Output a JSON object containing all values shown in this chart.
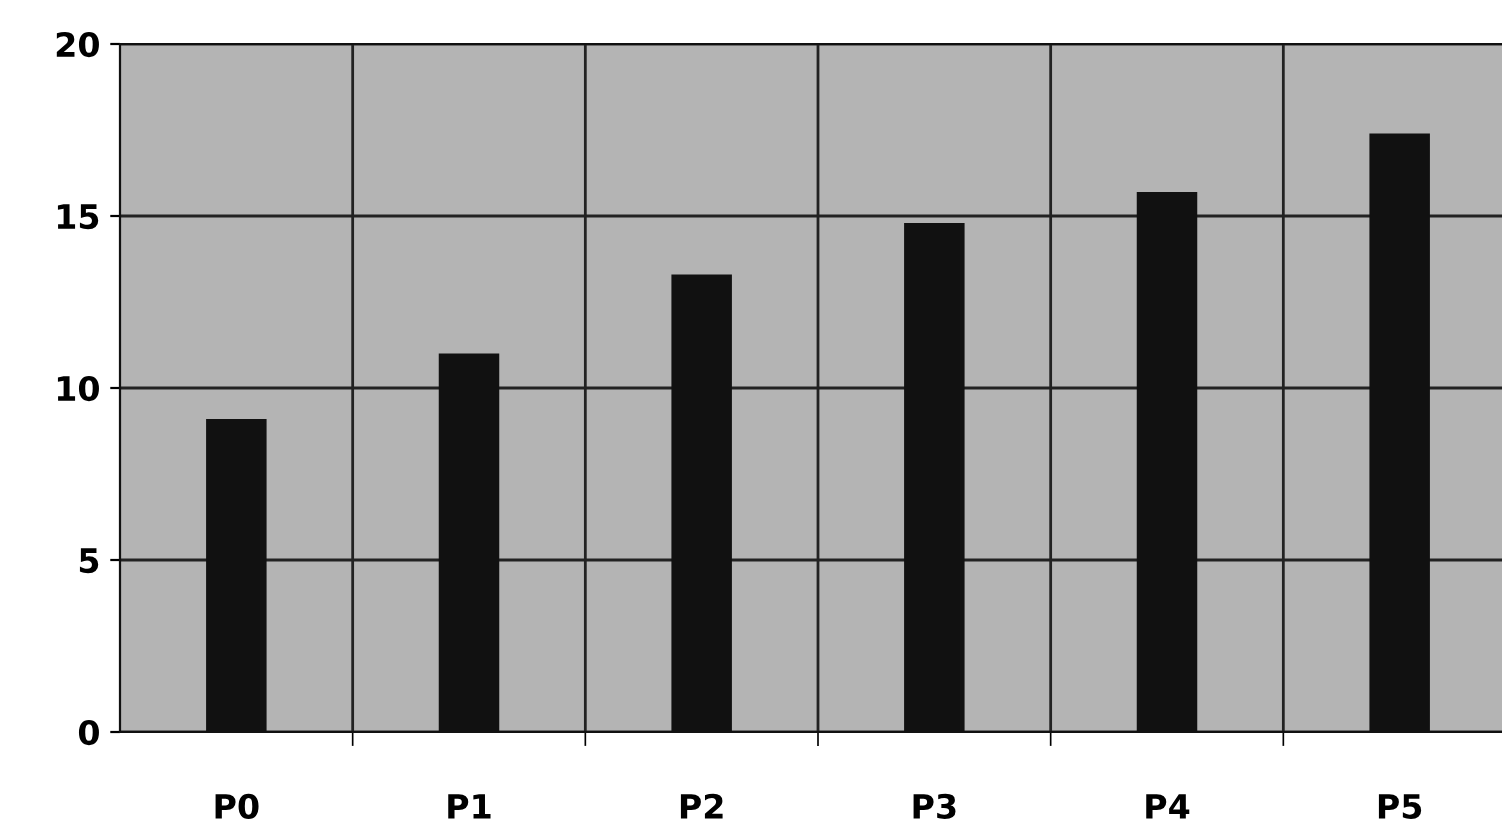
{
  "chart_data": {
    "type": "bar",
    "categories": [
      "P0",
      "P1",
      "P2",
      "P3",
      "P4",
      "P5"
    ],
    "values": [
      9.1,
      11.0,
      13.3,
      14.8,
      15.7,
      17.4
    ],
    "color": "#111111",
    "ylim": [
      0,
      20
    ],
    "yticks": [
      0,
      5,
      10,
      15,
      20
    ],
    "grid": true
  }
}
